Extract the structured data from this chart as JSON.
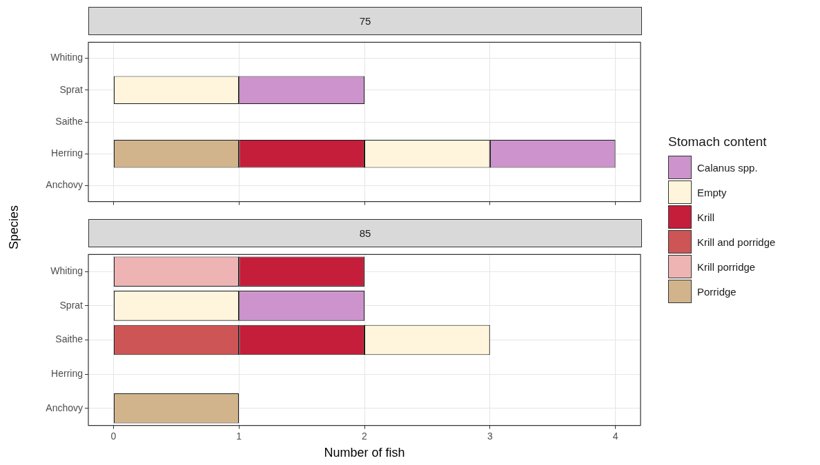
{
  "chart_data": [
    {
      "type": "bar",
      "orientation": "horizontal",
      "stacked": true,
      "title": "75",
      "ylabel": "Species",
      "legend": "right",
      "grid": true,
      "tick_labels": "y",
      "categories": [
        "Whiting",
        "Sprat",
        "Saithe",
        "Herring",
        "Anchovy"
      ],
      "xlim": [
        -0.2,
        4.2
      ],
      "xticks": [
        0,
        1,
        2,
        3,
        4
      ],
      "series": [
        {
          "name": "Porridge",
          "color": "#d2b48c",
          "values": [
            null,
            null,
            null,
            1,
            null
          ]
        },
        {
          "name": "Krill",
          "color": "#c41e3a",
          "values": [
            null,
            null,
            null,
            1,
            null
          ]
        },
        {
          "name": "Empty",
          "color": "#fff5dc",
          "values": [
            null,
            1,
            null,
            1,
            null
          ]
        },
        {
          "name": "Calanus spp.",
          "color": "#cc93cc",
          "values": [
            null,
            1,
            null,
            1,
            null
          ]
        }
      ]
    },
    {
      "type": "bar",
      "orientation": "horizontal",
      "stacked": true,
      "title": "85",
      "xlabel": "Number of fish",
      "legend": "right",
      "legend_title": "Stomach content",
      "grid": true,
      "categories": [
        "Whiting",
        "Sprat",
        "Saithe",
        "Herring",
        "Anchovy"
      ],
      "xlim": [
        -0.2,
        4.2
      ],
      "xticks": [
        0,
        1,
        2,
        3,
        4
      ],
      "series": [
        {
          "name": "Porridge",
          "color": "#d2b48c",
          "values": [
            null,
            null,
            null,
            null,
            1
          ]
        },
        {
          "name": "Krill porridge",
          "color": "#eeb4b4",
          "values": [
            1,
            null,
            null,
            null,
            null
          ]
        },
        {
          "name": "Krill and porridge",
          "color": "#cd5555",
          "values": [
            null,
            null,
            1,
            null,
            null
          ]
        },
        {
          "name": "Krill",
          "color": "#c41e3a",
          "values": [
            1,
            null,
            1,
            null,
            null
          ]
        },
        {
          "name": "Empty",
          "color": "#fff5dc",
          "values": [
            null,
            1,
            1,
            null,
            null
          ]
        },
        {
          "name": "Calanus spp.",
          "color": "#cc93cc",
          "values": [
            null,
            1,
            null,
            null,
            null
          ]
        }
      ]
    }
  ]
}
